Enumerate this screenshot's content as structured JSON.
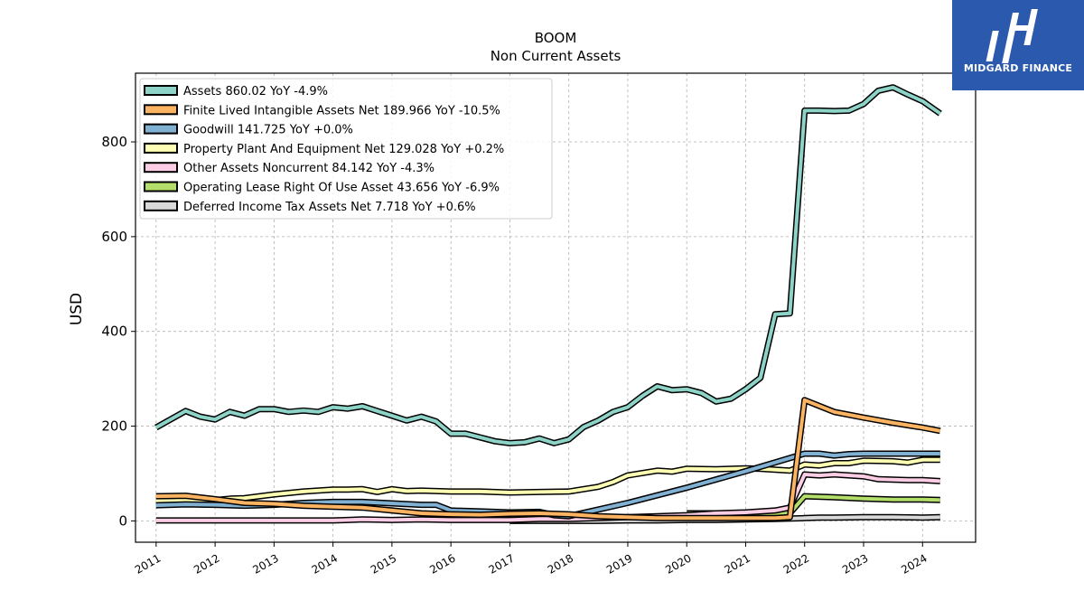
{
  "chart_data": {
    "type": "line",
    "title": "BOOM",
    "subtitle": "Non Current  Assets",
    "ylabel": "USD",
    "xlabel": "",
    "xlim": [
      2010.65,
      2024.9
    ],
    "ylim": [
      -45,
      945
    ],
    "grid": true,
    "legend_position": "top-left",
    "x_ticks": [
      "2011",
      "2012",
      "2013",
      "2014",
      "2015",
      "2016",
      "2017",
      "2018",
      "2019",
      "2020",
      "2021",
      "2022",
      "2023",
      "2024"
    ],
    "y_ticks": [
      0,
      200,
      400,
      600,
      800
    ],
    "series": [
      {
        "name": "Assets",
        "legend": "Assets  860.02 YoY -4.9%",
        "color": "#8dd3c7",
        "points": [
          [
            2011.0,
            197
          ],
          [
            2011.5,
            232
          ],
          [
            2011.75,
            220
          ],
          [
            2012.0,
            214
          ],
          [
            2012.25,
            230
          ],
          [
            2012.5,
            222
          ],
          [
            2012.75,
            236
          ],
          [
            2013.0,
            236
          ],
          [
            2013.25,
            230
          ],
          [
            2013.5,
            233
          ],
          [
            2013.75,
            230
          ],
          [
            2014.0,
            240
          ],
          [
            2014.25,
            237
          ],
          [
            2014.5,
            242
          ],
          [
            2014.75,
            232
          ],
          [
            2015.0,
            222
          ],
          [
            2015.25,
            212
          ],
          [
            2015.5,
            220
          ],
          [
            2015.75,
            210
          ],
          [
            2016.0,
            184
          ],
          [
            2016.25,
            184
          ],
          [
            2016.5,
            176
          ],
          [
            2016.75,
            168
          ],
          [
            2017.0,
            164
          ],
          [
            2017.25,
            166
          ],
          [
            2017.5,
            174
          ],
          [
            2017.75,
            164
          ],
          [
            2018.0,
            172
          ],
          [
            2018.25,
            198
          ],
          [
            2018.5,
            212
          ],
          [
            2018.75,
            230
          ],
          [
            2019.0,
            240
          ],
          [
            2019.25,
            264
          ],
          [
            2019.5,
            284
          ],
          [
            2019.75,
            276
          ],
          [
            2020.0,
            278
          ],
          [
            2020.25,
            270
          ],
          [
            2020.5,
            252
          ],
          [
            2020.75,
            258
          ],
          [
            2021.0,
            278
          ],
          [
            2021.25,
            302
          ],
          [
            2021.5,
            436
          ],
          [
            2021.75,
            438
          ],
          [
            2022.0,
            866
          ],
          [
            2022.25,
            866
          ],
          [
            2022.5,
            865
          ],
          [
            2022.75,
            866
          ],
          [
            2023.0,
            880
          ],
          [
            2023.25,
            908
          ],
          [
            2023.5,
            915
          ],
          [
            2023.75,
            900
          ],
          [
            2024.0,
            886
          ],
          [
            2024.3,
            860
          ]
        ]
      },
      {
        "name": "Finite Lived Intangible Assets Net",
        "legend": "Finite Lived Intangible Assets Net  189.966 YoY -10.5%",
        "color": "#fdb462",
        "points": [
          [
            2011.0,
            52
          ],
          [
            2011.5,
            53
          ],
          [
            2012.0,
            46
          ],
          [
            2012.5,
            38
          ],
          [
            2013.0,
            36
          ],
          [
            2013.5,
            32
          ],
          [
            2014.0,
            30
          ],
          [
            2014.5,
            28
          ],
          [
            2015.0,
            22
          ],
          [
            2015.5,
            16
          ],
          [
            2016.0,
            14
          ],
          [
            2016.5,
            13
          ],
          [
            2017.0,
            15
          ],
          [
            2017.5,
            16
          ],
          [
            2018.0,
            14
          ],
          [
            2018.5,
            10
          ],
          [
            2019.0,
            8
          ],
          [
            2019.5,
            6
          ],
          [
            2020.0,
            6
          ],
          [
            2020.5,
            6
          ],
          [
            2021.0,
            6
          ],
          [
            2021.5,
            6
          ],
          [
            2021.75,
            8
          ],
          [
            2022.0,
            255
          ],
          [
            2022.5,
            230
          ],
          [
            2023.0,
            218
          ],
          [
            2023.5,
            207
          ],
          [
            2024.0,
            197
          ],
          [
            2024.3,
            190
          ]
        ]
      },
      {
        "name": "Goodwill",
        "legend": "Goodwill  141.725 YoY +0.0%",
        "color": "#80b1d3",
        "points": [
          [
            2011.0,
            33
          ],
          [
            2011.5,
            35
          ],
          [
            2012.0,
            34
          ],
          [
            2012.5,
            32
          ],
          [
            2013.0,
            34
          ],
          [
            2013.5,
            38
          ],
          [
            2014.0,
            40
          ],
          [
            2014.5,
            40
          ],
          [
            2015.0,
            37
          ],
          [
            2015.5,
            34
          ],
          [
            2015.75,
            34
          ],
          [
            2016.0,
            22
          ],
          [
            2016.5,
            20
          ],
          [
            2017.0,
            18
          ],
          [
            2017.5,
            19
          ],
          [
            2017.75,
            12
          ],
          [
            2018.0,
            10
          ],
          [
            2019.0,
            38
          ],
          [
            2020.0,
            70
          ],
          [
            2021.0,
            105
          ],
          [
            2022.0,
            142
          ],
          [
            2022.25,
            142
          ],
          [
            2022.5,
            138
          ],
          [
            2022.75,
            141
          ],
          [
            2023.0,
            142
          ],
          [
            2023.5,
            142
          ],
          [
            2024.0,
            142
          ],
          [
            2024.3,
            142
          ]
        ]
      },
      {
        "name": "Property Plant And Equipment Net",
        "legend": "Property Plant And Equipment Net  129.028 YoY +0.2%",
        "color": "#ffffb3",
        "points": [
          [
            2011.0,
            42
          ],
          [
            2011.5,
            43
          ],
          [
            2012.0,
            44
          ],
          [
            2012.25,
            47
          ],
          [
            2012.5,
            48
          ],
          [
            2013.0,
            56
          ],
          [
            2013.5,
            62
          ],
          [
            2014.0,
            66
          ],
          [
            2014.25,
            66
          ],
          [
            2014.5,
            67
          ],
          [
            2014.75,
            61
          ],
          [
            2015.0,
            67
          ],
          [
            2015.25,
            63
          ],
          [
            2015.5,
            64
          ],
          [
            2016.0,
            62
          ],
          [
            2016.5,
            62
          ],
          [
            2017.0,
            60
          ],
          [
            2017.5,
            61
          ],
          [
            2018.0,
            62
          ],
          [
            2018.5,
            72
          ],
          [
            2018.75,
            82
          ],
          [
            2019.0,
            96
          ],
          [
            2019.5,
            106
          ],
          [
            2019.75,
            104
          ],
          [
            2020.0,
            110
          ],
          [
            2020.5,
            109
          ],
          [
            2021.0,
            111
          ],
          [
            2021.25,
            110
          ],
          [
            2021.75,
            106
          ],
          [
            2022.0,
            119
          ],
          [
            2022.25,
            117
          ],
          [
            2022.5,
            122
          ],
          [
            2022.75,
            122
          ],
          [
            2023.0,
            127
          ],
          [
            2023.5,
            126
          ],
          [
            2023.75,
            123
          ],
          [
            2024.0,
            129
          ],
          [
            2024.3,
            129
          ]
        ]
      },
      {
        "name": "Other Assets Noncurrent",
        "legend": "Other Assets Noncurrent  84.142 YoY -4.3%",
        "color": "#fccde5",
        "points": [
          [
            2011.0,
            1
          ],
          [
            2011.5,
            1
          ],
          [
            2012.0,
            1
          ],
          [
            2012.5,
            1
          ],
          [
            2013.0,
            1
          ],
          [
            2013.5,
            1
          ],
          [
            2014.0,
            1
          ],
          [
            2014.25,
            2
          ],
          [
            2014.5,
            3
          ],
          [
            2015.0,
            2
          ],
          [
            2015.5,
            3
          ],
          [
            2016.0,
            2
          ],
          [
            2016.5,
            2
          ],
          [
            2017.0,
            2
          ],
          [
            2017.5,
            4
          ],
          [
            2018.0,
            4
          ],
          [
            2018.5,
            6
          ],
          [
            2019.0,
            8
          ],
          [
            2019.5,
            10
          ],
          [
            2020.0,
            12
          ],
          [
            2020.5,
            16
          ],
          [
            2021.0,
            18
          ],
          [
            2021.5,
            22
          ],
          [
            2021.75,
            28
          ],
          [
            2022.0,
            98
          ],
          [
            2022.25,
            96
          ],
          [
            2022.5,
            98
          ],
          [
            2023.0,
            94
          ],
          [
            2023.25,
            88
          ],
          [
            2023.75,
            86
          ],
          [
            2024.0,
            86
          ],
          [
            2024.3,
            84
          ]
        ]
      },
      {
        "name": "Operating Lease Right Of Use Asset",
        "legend": "Operating Lease Right Of Use Asset  43.656 YoY -6.9%",
        "color": "#b3de69",
        "points": [
          [
            2020.0,
            16
          ],
          [
            2020.5,
            16
          ],
          [
            2021.0,
            16
          ],
          [
            2021.5,
            16
          ],
          [
            2021.75,
            16
          ],
          [
            2022.0,
            52
          ],
          [
            2022.5,
            50
          ],
          [
            2023.0,
            47
          ],
          [
            2023.5,
            45
          ],
          [
            2024.0,
            45
          ],
          [
            2024.3,
            44
          ]
        ]
      },
      {
        "name": "Deferred Income Tax Assets Net",
        "legend": "Deferred Income Tax Assets Net  7.718 YoY +0.6%",
        "color": "#d9d9d9",
        "points": [
          [
            2017.0,
            0
          ],
          [
            2017.5,
            0
          ],
          [
            2018.0,
            0
          ],
          [
            2018.5,
            0
          ],
          [
            2019.0,
            1
          ],
          [
            2019.5,
            1
          ],
          [
            2020.0,
            2
          ],
          [
            2020.5,
            2
          ],
          [
            2021.0,
            3
          ],
          [
            2021.5,
            4
          ],
          [
            2022.0,
            6
          ],
          [
            2022.25,
            7
          ],
          [
            2022.5,
            7
          ],
          [
            2023.0,
            8
          ],
          [
            2023.5,
            8
          ],
          [
            2024.0,
            7
          ],
          [
            2024.3,
            8
          ]
        ]
      }
    ]
  },
  "logo": {
    "text": "MIDGARD FINANCE"
  }
}
